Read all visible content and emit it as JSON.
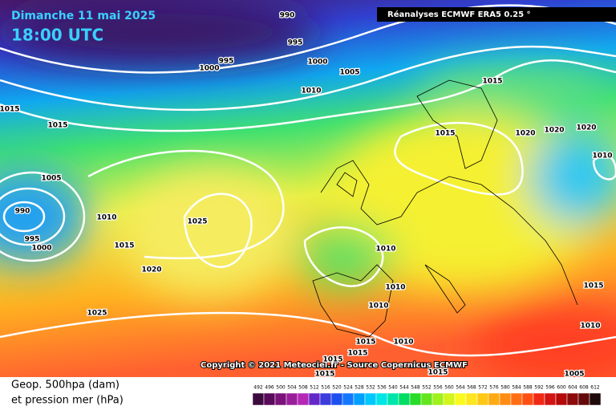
{
  "header": {
    "date": "Dimanche 11 mai 2025",
    "time": "18:00 UTC",
    "source": "Réanalyses ECMWF ERA5 0.25 °"
  },
  "copyright": "Copyright © 2021 Meteociel.fr - Source Copernicus ECMWF",
  "isobar_labels": [
    990,
    995,
    995,
    1000,
    1000,
    1005,
    1010,
    1015,
    1015,
    1015,
    1015,
    1020,
    1020,
    1020,
    1010,
    1005,
    990,
    1010,
    1025,
    995,
    1000,
    1015,
    1010,
    1020,
    1010,
    1015,
    1010,
    1025,
    1010,
    1015,
    1015,
    1010,
    1015,
    1015,
    1015,
    1005
  ],
  "legend": {
    "title_line1": "Geop. 500hpa (dam)",
    "title_line2": "et pression mer (hPa)",
    "ticks": [
      492,
      496,
      500,
      504,
      508,
      512,
      516,
      520,
      524,
      528,
      532,
      536,
      540,
      544,
      548,
      552,
      556,
      560,
      564,
      568,
      572,
      576,
      580,
      584,
      588,
      592,
      596,
      600,
      604,
      608,
      612
    ],
    "colors": [
      "#3c0a3c",
      "#5a0a5a",
      "#7a127a",
      "#9a1e9a",
      "#b428b4",
      "#6428c8",
      "#3c3cdc",
      "#1e50f0",
      "#1478ff",
      "#00a0ff",
      "#00c8ff",
      "#00e6e6",
      "#00e6aa",
      "#00dc64",
      "#28dc28",
      "#64e61e",
      "#a0f01e",
      "#d2f51e",
      "#fafa1e",
      "#ffe61e",
      "#ffc814",
      "#ffaa14",
      "#ff8c14",
      "#ff6e14",
      "#ff5014",
      "#f02814",
      "#d21414",
      "#b40a0a",
      "#8c0a0a",
      "#640a0a",
      "#1e0a0a"
    ]
  }
}
